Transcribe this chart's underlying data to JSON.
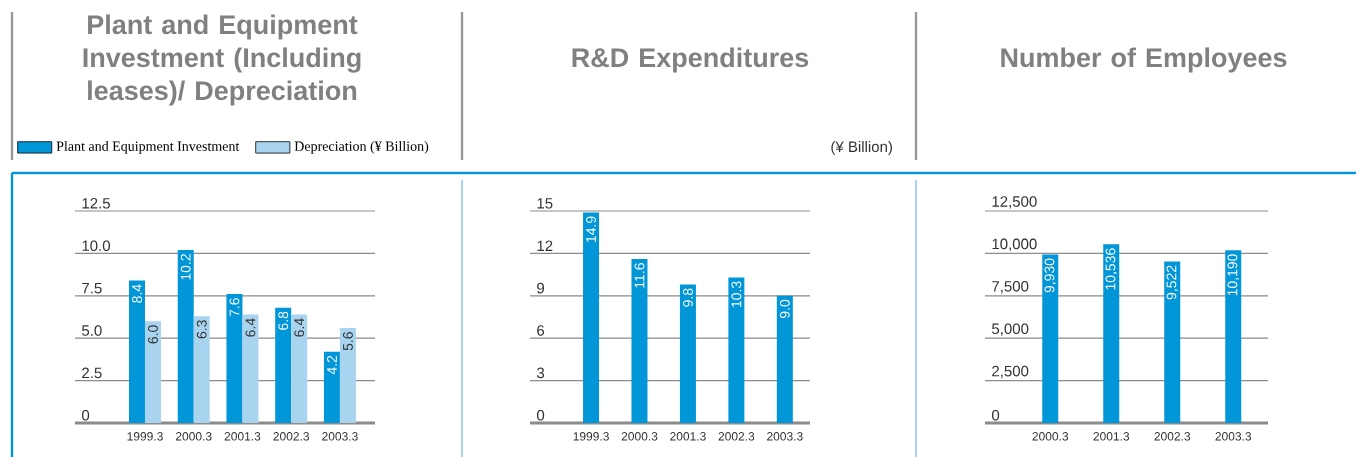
{
  "chart_data": [
    {
      "type": "bar",
      "title": "Plant and Equipment Investment (Including leases)/ Depreciation",
      "categories": [
        "1999.3",
        "2000.3",
        "2001.3",
        "2002.3",
        "2003.3"
      ],
      "series": [
        {
          "name": "Plant and Equipment Investment",
          "color": "#0096d8",
          "values": [
            8.4,
            10.2,
            7.6,
            6.8,
            4.2
          ],
          "value_labels": [
            "8.4",
            "10.2",
            "7.6",
            "6.8",
            "4.2"
          ]
        },
        {
          "name": "Depreciation (¥ Billion)",
          "color": "#a9d4ef",
          "values": [
            6.0,
            6.3,
            6.4,
            6.4,
            5.6
          ],
          "value_labels": [
            "6.0",
            "6.3",
            "6.4",
            "6.4",
            "5.6"
          ]
        }
      ],
      "ylim": [
        0,
        12.5
      ],
      "yticks": [
        0,
        {
          "value": 2.5,
          "label": "2.5"
        },
        {
          "value": 5,
          "label": "5.0"
        },
        {
          "value": 7.5,
          "label": "7.5"
        },
        {
          "value": 10,
          "label": "10.0"
        },
        {
          "value": 12.5,
          "label": "12.5"
        }
      ],
      "grid": "y",
      "legend": "top"
    },
    {
      "type": "bar",
      "title": "R&D Expenditures",
      "categories": [
        "1999.3",
        "2000.3",
        "2001.3",
        "2002.3",
        "2003.3"
      ],
      "series": [
        {
          "color": "#0096d8",
          "values": [
            14.9,
            11.6,
            9.8,
            10.3,
            9.0
          ],
          "value_labels": [
            "14.9",
            "11.6",
            "9.8",
            "10.3",
            "9.0"
          ]
        }
      ],
      "ylim": [
        0,
        15
      ],
      "yticks": [
        0,
        3,
        6,
        9,
        12,
        15
      ],
      "grid": "y",
      "annotations": [
        "(¥ Billion)"
      ]
    },
    {
      "type": "bar",
      "title": "Number of Employees",
      "categories": [
        "2000.3",
        "2001.3",
        "2002.3",
        "2003.3"
      ],
      "series": [
        {
          "color": "#0096d8",
          "values": [
            9930,
            10536,
            9522,
            10190
          ],
          "value_labels": [
            "9,930",
            "10,536",
            "9,522",
            "10,190"
          ]
        }
      ],
      "ylim": [
        0,
        12500
      ],
      "yticks": [
        0,
        {
          "value": 2500,
          "label": "2,500"
        },
        {
          "value": 5000,
          "label": "5,000"
        },
        {
          "value": 7500,
          "label": "7,500"
        },
        {
          "value": 10000,
          "label": "10,000"
        },
        {
          "value": 12500,
          "label": "12,500"
        }
      ],
      "grid": "y"
    }
  ]
}
